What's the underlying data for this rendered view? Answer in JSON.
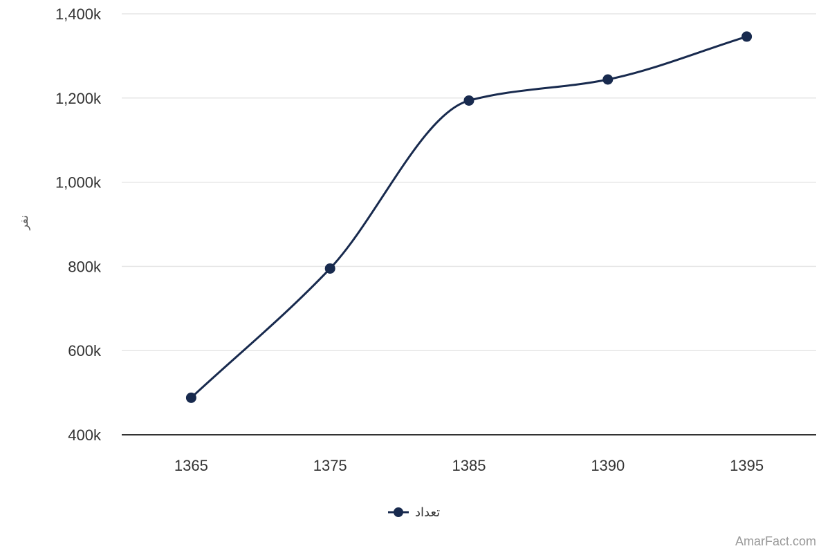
{
  "chart_data": {
    "type": "line",
    "smooth": true,
    "categories": [
      "1365",
      "1375",
      "1385",
      "1390",
      "1395"
    ],
    "series": [
      {
        "name": "تعداد",
        "values": [
          488000,
          795000,
          1194000,
          1244000,
          1346000
        ]
      }
    ],
    "ylabel": "نفر",
    "xlabel": "",
    "ylim": [
      400000,
      1400000
    ],
    "yticks": [
      400000,
      600000,
      800000,
      1000000,
      1200000,
      1400000
    ],
    "ytick_labels": [
      "400k",
      "600k",
      "800k",
      "1,000k",
      "1,200k",
      "1,400k"
    ],
    "grid": true,
    "legend_position": "bottom-center",
    "colors": {
      "series": "#182a4e",
      "grid": "#e6e6e6",
      "axis": "#333333"
    }
  },
  "credit": "AmarFact.com"
}
